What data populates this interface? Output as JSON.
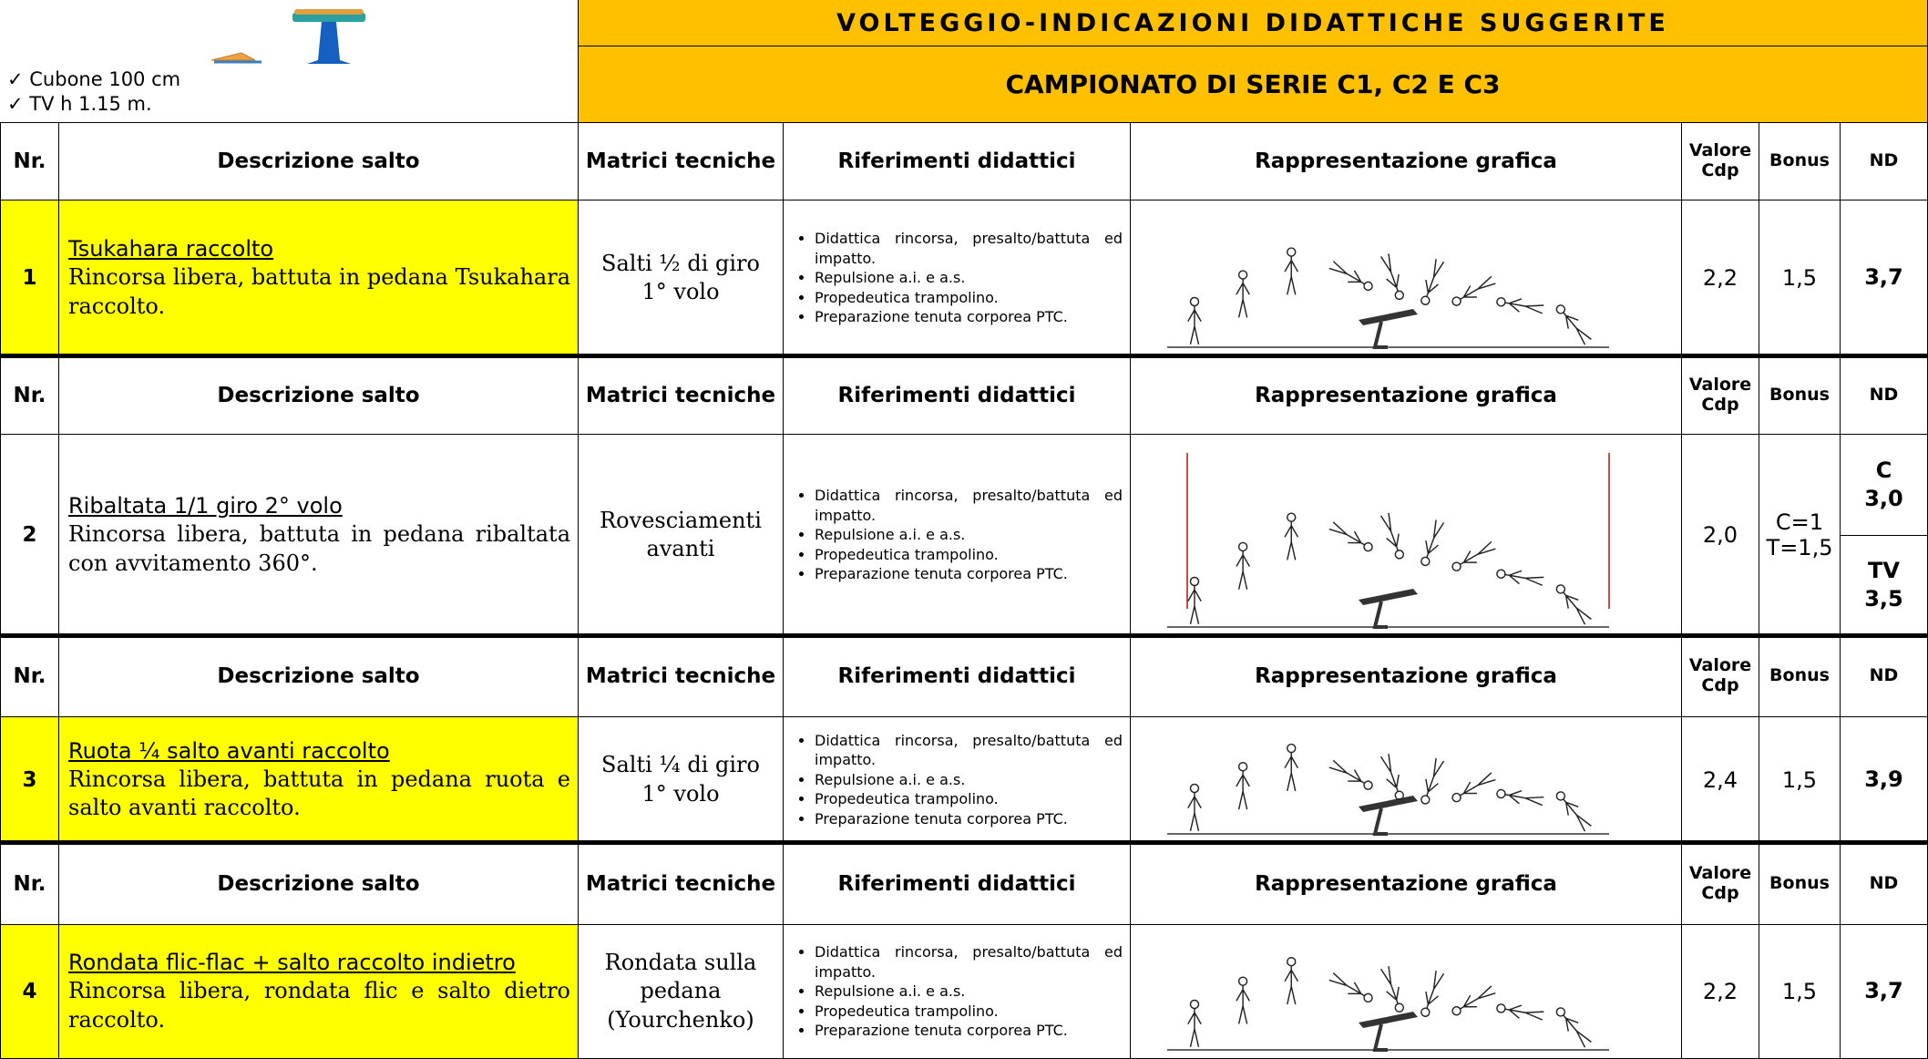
{
  "header": {
    "title": "VOLTEGGIO-INDICAZIONI DIDATTICHE SUGGERITE",
    "subtitle": "CAMPIONATO DI SERIE C1, C2 E C3",
    "notes": [
      "✓ Cubone 100 cm",
      "✓ TV h 1.15 m."
    ]
  },
  "columns": [
    "Nr.",
    "Descrizione salto",
    "Matrici tecniche",
    "Riferimenti didattici",
    "Rappresentazione grafica",
    "Valore Cdp",
    "Bonus",
    "ND"
  ],
  "rows": [
    {
      "nr": "1",
      "name": "Tsukahara raccolto",
      "description": "Rincorsa libera, battuta in pedana Tsukahara raccolto.",
      "matrix": "Salti ½ di giro 1° volo",
      "references": [
        "Didattica rincorsa, presalto/battuta ed impatto.",
        "Repulsione a.i. e a.s.",
        "Propedeutica trampolino.",
        "Preparazione tenuta corporea PTC."
      ],
      "value": "2,2",
      "bonus": [
        "1,5"
      ],
      "nd": [
        {
          "label": "3,7"
        }
      ],
      "highlight": true
    },
    {
      "nr": "2",
      "name": "Ribaltata 1/1 giro 2° volo",
      "description": "Rincorsa libera, battuta in pedana ribaltata con avvitamento 360°.",
      "matrix": "Rovesciamenti avanti",
      "references": [
        "Didattica rincorsa, presalto/battuta ed impatto.",
        "Repulsione a.i. e a.s.",
        "Propedeutica trampolino.",
        "Preparazione tenuta corporea PTC."
      ],
      "value": "2,0",
      "bonus": [
        "C=1",
        "T=1,5"
      ],
      "nd": [
        {
          "label": "C",
          "value": "3,0"
        },
        {
          "label": "TV",
          "value": "3,5"
        }
      ],
      "highlight": false
    },
    {
      "nr": "3",
      "name": "Ruota ¼ salto avanti raccolto",
      "description": "Rincorsa libera, battuta in pedana ruota e salto avanti raccolto.",
      "matrix": "Salti ¼ di giro 1° volo",
      "references": [
        "Didattica rincorsa, presalto/battuta ed impatto.",
        "Repulsione a.i. e a.s.",
        "Propedeutica trampolino.",
        "Preparazione tenuta corporea PTC."
      ],
      "value": "2,4",
      "bonus": [
        "1,5"
      ],
      "nd": [
        {
          "label": "3,9"
        }
      ],
      "highlight": true
    },
    {
      "nr": "4",
      "name": "Rondata flic-flac + salto raccolto indietro",
      "description": "Rincorsa libera, rondata flic e salto dietro raccolto.",
      "matrix": "Rondata sulla pedana (Yourchenko)",
      "references": [
        "Didattica rincorsa, presalto/battuta ed impatto.",
        "Repulsione a.i. e a.s.",
        "Propedeutica trampolino.",
        "Preparazione tenuta corporea PTC."
      ],
      "value": "2,2",
      "bonus": [
        "1,5"
      ],
      "nd": [
        {
          "label": "3,7"
        }
      ],
      "highlight": true
    }
  ]
}
